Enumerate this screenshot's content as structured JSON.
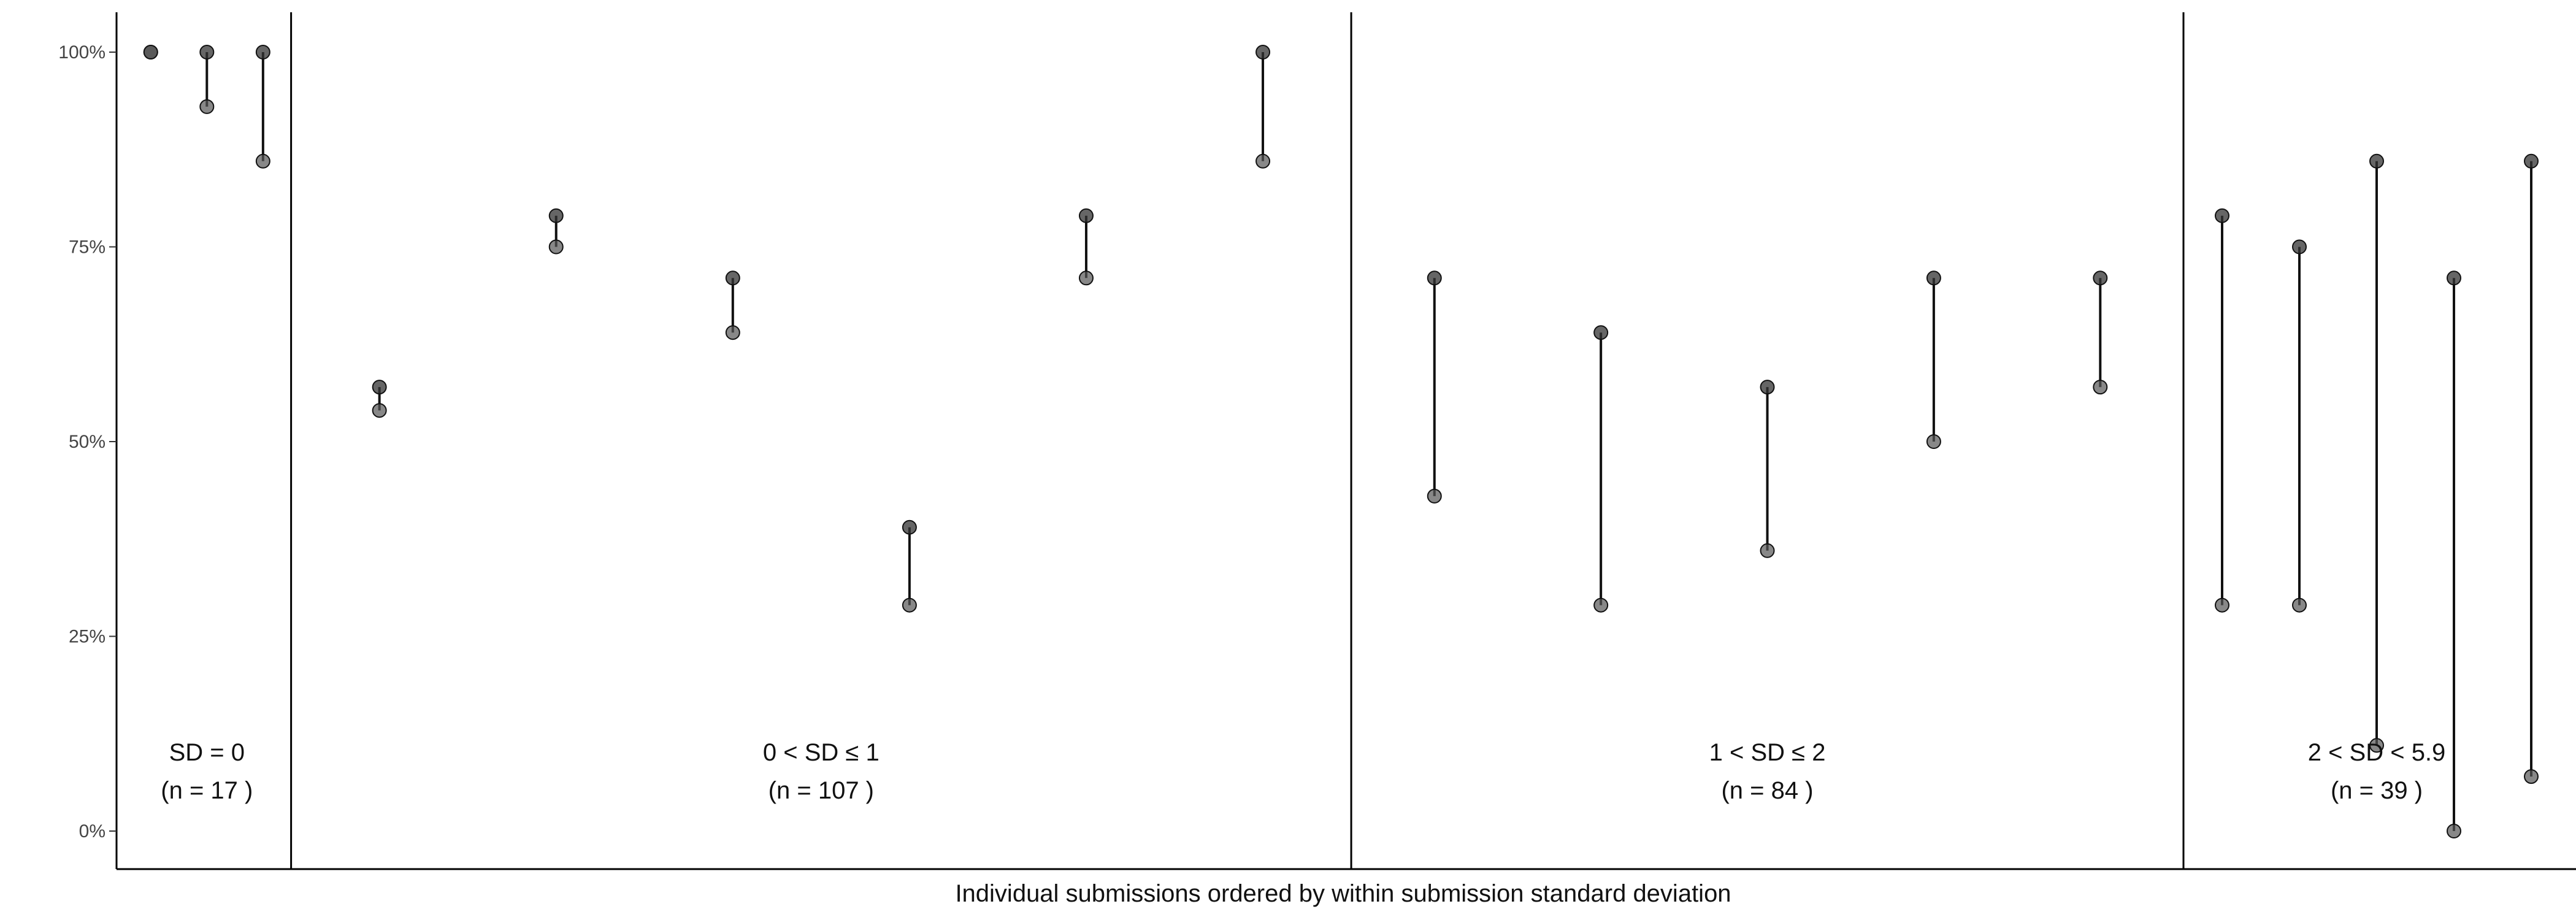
{
  "chart_data": {
    "type": "scatter",
    "title": "",
    "xlabel": "Individual submissions ordered by within submission standard deviation",
    "ylabel": "",
    "ylim": [
      0,
      1
    ],
    "y_ticks": [
      {
        "value": 0,
        "label": "0%"
      },
      {
        "value": 0.25,
        "label": "25%"
      },
      {
        "value": 0.5,
        "label": "50%"
      },
      {
        "value": 0.75,
        "label": "75%"
      },
      {
        "value": 1,
        "label": "100%"
      }
    ],
    "grid": false,
    "groups": [
      {
        "label": "SD = 0",
        "count_label": "(n = 17 )",
        "n": 17
      },
      {
        "label": "0 < SD ≤ 1",
        "count_label": "(n = 107 )",
        "n": 107
      },
      {
        "label": "1 < SD ≤ 2",
        "count_label": "(n = 84 )",
        "n": 84
      },
      {
        "label": "2 < SD < 5.9",
        "count_label": "(n = 39 )",
        "n": 39
      }
    ],
    "representative_submissions": [
      {
        "group": 0,
        "min": 1.0,
        "max": 1.0
      },
      {
        "group": 0,
        "min": 0.93,
        "max": 1.0
      },
      {
        "group": 0,
        "min": 0.86,
        "max": 1.0
      },
      {
        "group": 1,
        "min": 0.54,
        "max": 0.57
      },
      {
        "group": 1,
        "min": 0.75,
        "max": 0.79
      },
      {
        "group": 1,
        "min": 0.64,
        "max": 0.71
      },
      {
        "group": 1,
        "min": 0.29,
        "max": 0.39
      },
      {
        "group": 1,
        "min": 0.71,
        "max": 0.79
      },
      {
        "group": 1,
        "min": 0.86,
        "max": 1.0
      },
      {
        "group": 2,
        "min": 0.43,
        "max": 0.71
      },
      {
        "group": 2,
        "min": 0.29,
        "max": 0.64
      },
      {
        "group": 2,
        "min": 0.36,
        "max": 0.57
      },
      {
        "group": 2,
        "min": 0.5,
        "max": 0.71
      },
      {
        "group": 2,
        "min": 0.57,
        "max": 0.71
      },
      {
        "group": 3,
        "min": 0.29,
        "max": 0.79
      },
      {
        "group": 3,
        "min": 0.29,
        "max": 0.75
      },
      {
        "group": 3,
        "min": 0.11,
        "max": 0.86
      },
      {
        "group": 3,
        "min": 0.0,
        "max": 0.71
      },
      {
        "group": 3,
        "min": 0.07,
        "max": 0.86
      }
    ]
  }
}
